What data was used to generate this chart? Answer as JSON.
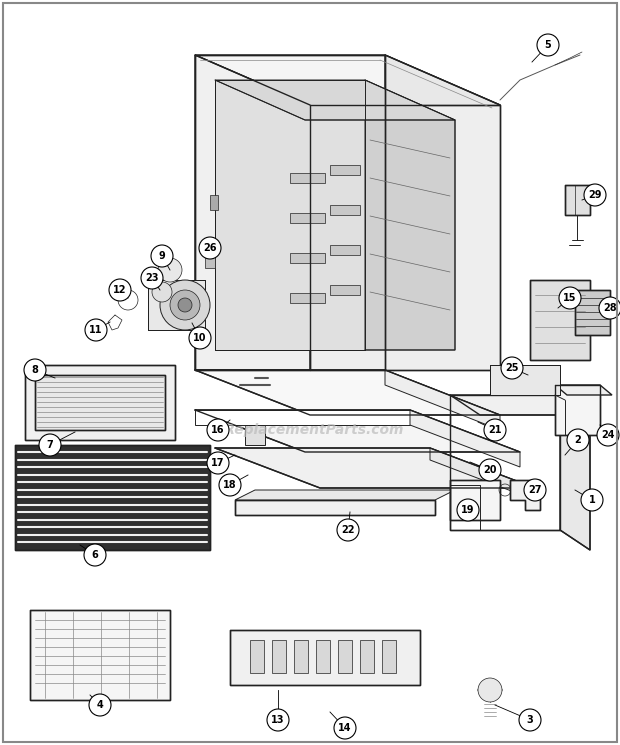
{
  "bg_color": "#ffffff",
  "line_color": "#222222",
  "watermark": "eReplacementParts.com",
  "watermark_color": "#bbbbbb",
  "figsize": [
    6.2,
    7.45
  ],
  "dpi": 100
}
